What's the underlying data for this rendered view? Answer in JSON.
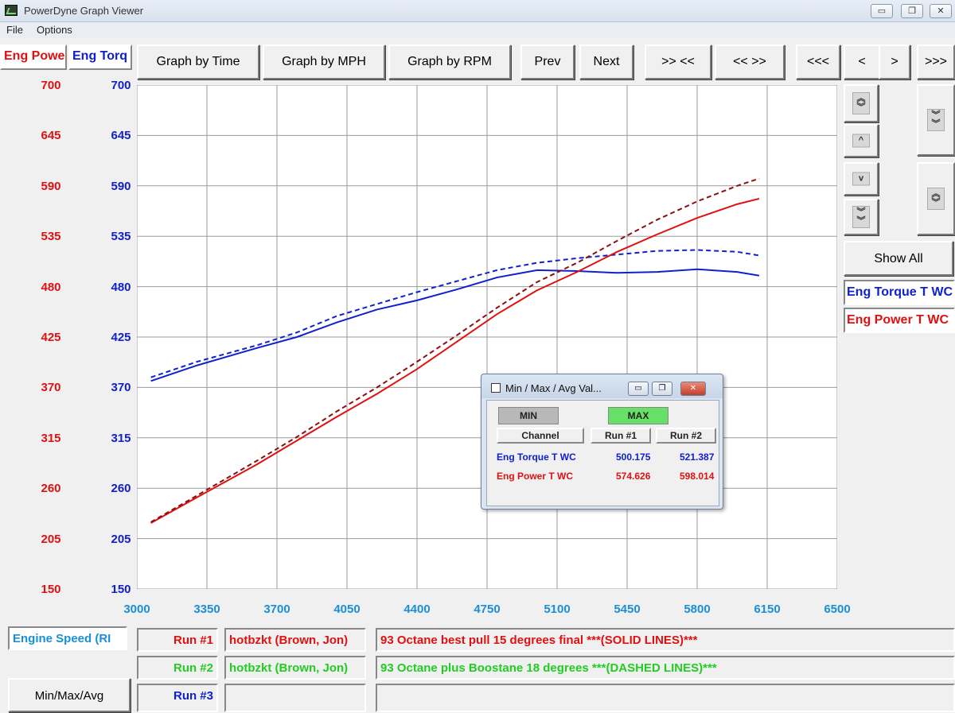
{
  "window": {
    "title": "PowerDyne Graph Viewer",
    "controls": [
      "▭",
      "❐",
      "✕"
    ]
  },
  "menu": [
    "File",
    "Options"
  ],
  "channels": {
    "power_label": "Eng Powe",
    "torque_label": "Eng Torq",
    "power_color": "#e01010",
    "torque_color": "#1020d0"
  },
  "toolbar": [
    {
      "label": "Graph by Time"
    },
    {
      "label": "Graph by MPH"
    },
    {
      "label": "Graph by RPM"
    },
    {
      "label": "Prev"
    },
    {
      "label": "Next"
    },
    {
      "label": ">> <<"
    },
    {
      "label": "<< >>"
    },
    {
      "label": "<<<"
    },
    {
      "label": "<"
    },
    {
      "label": ">"
    },
    {
      "label": ">>>"
    }
  ],
  "right_panel": {
    "show_all": "Show All",
    "legend": [
      {
        "label": "Eng Torque T WC",
        "color": "#1020d0"
      },
      {
        "label": "Eng Power T WC",
        "color": "#e01010"
      }
    ]
  },
  "chart_data": {
    "type": "line",
    "x_label": "Engine Speed (RI",
    "xlim": [
      3000,
      6500
    ],
    "x_ticks": [
      "3000",
      "3350",
      "3700",
      "4050",
      "4400",
      "4750",
      "5100",
      "5450",
      "5800",
      "6150",
      "6500"
    ],
    "ylim": [
      150,
      700
    ],
    "y_ticks_power": [
      "700",
      "645",
      "590",
      "535",
      "480",
      "425",
      "370",
      "315",
      "260",
      "205",
      "150"
    ],
    "y_ticks_torque": [
      "700",
      "645",
      "590",
      "535",
      "480",
      "425",
      "370",
      "315",
      "260",
      "205",
      "150"
    ],
    "grid": true,
    "series": [
      {
        "name": "Eng Torque T WC",
        "run": "Run #1",
        "color": "#1020d0",
        "dash": false,
        "x": [
          3070,
          3300,
          3600,
          3800,
          4000,
          4200,
          4400,
          4600,
          4800,
          5000,
          5200,
          5400,
          5600,
          5800,
          6000,
          6110
        ],
        "y": [
          377,
          394,
          413,
          425,
          441,
          455,
          465,
          477,
          490,
          498,
          497,
          495,
          496,
          499,
          496,
          492
        ]
      },
      {
        "name": "Eng Torque T WC",
        "run": "Run #2",
        "color": "#1020d0",
        "dash": true,
        "x": [
          3070,
          3300,
          3600,
          3800,
          4000,
          4200,
          4400,
          4600,
          4800,
          5000,
          5200,
          5400,
          5600,
          5800,
          6000,
          6110
        ],
        "y": [
          381,
          398,
          416,
          430,
          448,
          461,
          474,
          486,
          498,
          506,
          511,
          515,
          519,
          520,
          518,
          514
        ]
      },
      {
        "name": "Eng Power T WC",
        "run": "Run #1",
        "color": "#e01010",
        "dash": false,
        "x": [
          3070,
          3300,
          3600,
          3800,
          4000,
          4200,
          4400,
          4600,
          4800,
          5000,
          5200,
          5400,
          5600,
          5800,
          6000,
          6110
        ],
        "y": [
          222,
          250,
          286,
          312,
          338,
          363,
          390,
          420,
          450,
          476,
          496,
          518,
          537,
          555,
          570,
          576
        ]
      },
      {
        "name": "Eng Power T WC",
        "run": "Run #2",
        "color": "#8a1010",
        "dash": true,
        "x": [
          3070,
          3300,
          3600,
          3800,
          4000,
          4200,
          4400,
          4600,
          4800,
          5000,
          5200,
          5400,
          5600,
          5800,
          6000,
          6110
        ],
        "y": [
          223,
          252,
          290,
          316,
          344,
          370,
          398,
          427,
          457,
          485,
          506,
          530,
          553,
          573,
          590,
          598
        ]
      }
    ]
  },
  "runs": [
    {
      "label": "Run #1",
      "color": "#e01010",
      "driver": "hotbzkt (Brown, Jon)",
      "note": "93 Octane best pull 15 degrees final ***(SOLID LINES)***"
    },
    {
      "label": "Run #2",
      "color": "#22cc22",
      "driver": "hotbzkt (Brown, Jon)",
      "note": "93 Octane plus Boostane 18 degrees  ***(DASHED LINES)***"
    },
    {
      "label": "Run #3",
      "color": "#1020d0",
      "driver": "",
      "note": ""
    }
  ],
  "minmax_button": "Min/Max/Avg",
  "dialog": {
    "title": "Min / Max / Avg Val...",
    "min_label": "MIN",
    "max_label": "MAX",
    "max_active_color": "#66e066",
    "headers": [
      "Channel",
      "Run #1",
      "Run #2"
    ],
    "rows": [
      {
        "channel": "Eng Torque T WC",
        "run1": "500.175",
        "run2": "521.387",
        "color": "#1020d0"
      },
      {
        "channel": "Eng Power T WC",
        "run1": "574.626",
        "run2": "598.014",
        "color": "#e01010"
      }
    ]
  }
}
